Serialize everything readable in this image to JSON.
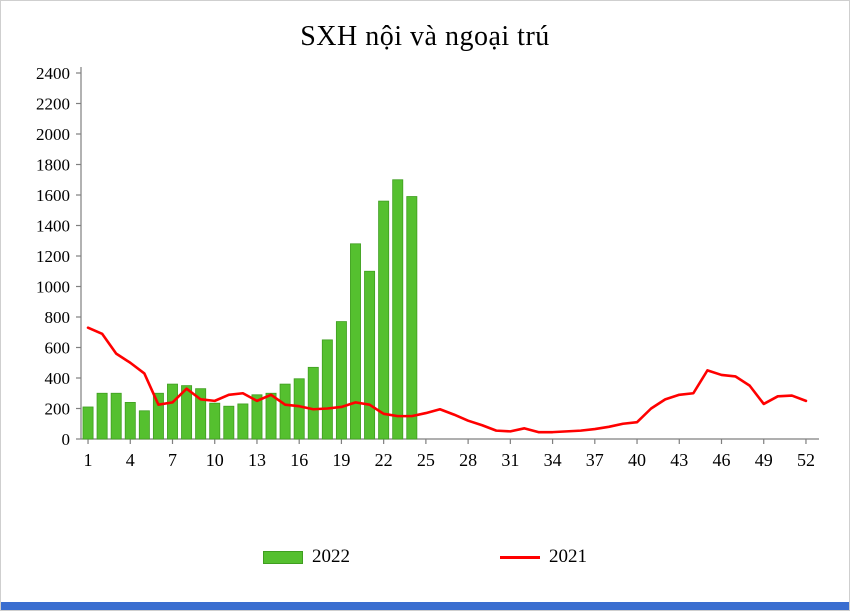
{
  "window": {
    "accent_color": "#3a6ed0",
    "frame_border_color": "#cfcfcf"
  },
  "chart": {
    "axis_color": "#7f7f7f",
    "text_color": "#000000"
  },
  "chart_data": {
    "type": "bar+line",
    "title": "SXH nội và ngoại trú",
    "xlabel": "",
    "ylabel": "",
    "x": [
      1,
      2,
      3,
      4,
      5,
      6,
      7,
      8,
      9,
      10,
      11,
      12,
      13,
      14,
      15,
      16,
      17,
      18,
      19,
      20,
      21,
      22,
      23,
      24,
      25,
      26,
      27,
      28,
      29,
      30,
      31,
      32,
      33,
      34,
      35,
      36,
      37,
      38,
      39,
      40,
      41,
      42,
      43,
      44,
      45,
      46,
      47,
      48,
      49,
      50,
      51,
      52
    ],
    "x_tick_labels": [
      1,
      4,
      7,
      10,
      13,
      16,
      19,
      22,
      25,
      28,
      31,
      34,
      37,
      40,
      43,
      46,
      49,
      52
    ],
    "ylim": [
      0,
      2400
    ],
    "y_ticks": [
      0,
      200,
      400,
      600,
      800,
      1000,
      1200,
      1400,
      1600,
      1800,
      2000,
      2200,
      2400
    ],
    "grid": false,
    "legend_position": "bottom",
    "series": [
      {
        "name": "2022",
        "type": "bar",
        "color": "#55c02f",
        "border_color": "#3f9e20",
        "start_week": 1,
        "values": [
          210,
          300,
          300,
          240,
          185,
          300,
          360,
          350,
          330,
          235,
          215,
          230,
          290,
          300,
          360,
          395,
          470,
          650,
          770,
          1280,
          1100,
          1560,
          1700,
          1590
        ]
      },
      {
        "name": "2021",
        "type": "line",
        "color": "#ff0000",
        "start_week": 1,
        "values": [
          730,
          690,
          560,
          500,
          430,
          225,
          240,
          330,
          260,
          250,
          290,
          300,
          250,
          290,
          225,
          215,
          195,
          200,
          210,
          240,
          225,
          165,
          150,
          150,
          170,
          195,
          160,
          120,
          90,
          55,
          50,
          70,
          45,
          45,
          50,
          55,
          65,
          80,
          100,
          110,
          200,
          260,
          290,
          300,
          450,
          420,
          410,
          350,
          230,
          280,
          285,
          250
        ]
      }
    ]
  }
}
